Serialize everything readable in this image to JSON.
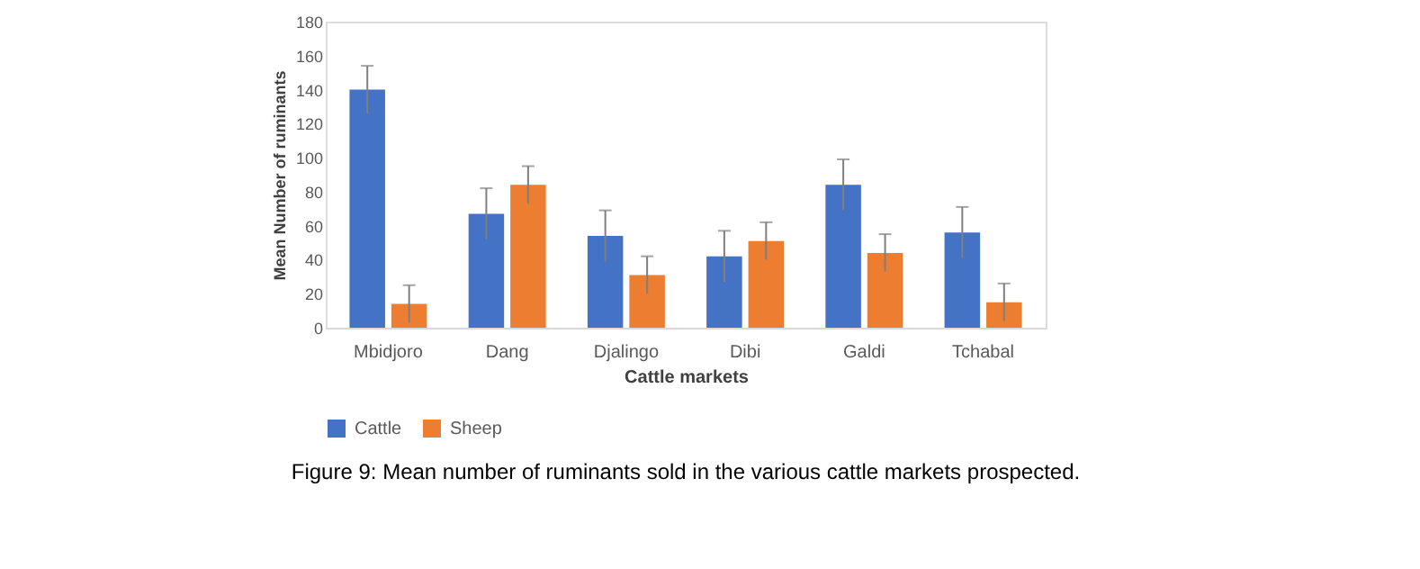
{
  "chart_data": {
    "type": "bar",
    "xlabel": "Cattle markets",
    "ylabel": "Mean Number of ruminants",
    "categories": [
      "Mbidjoro",
      "Dang",
      "Djalingo",
      "Dibi",
      "Galdi",
      "Tchabal"
    ],
    "series": [
      {
        "name": "Cattle",
        "color": "#4472c4",
        "values": [
          140,
          67,
          54,
          42,
          84,
          56
        ],
        "errors": [
          14,
          15,
          15,
          15,
          15,
          15
        ]
      },
      {
        "name": "Sheep",
        "color": "#ed7d31",
        "values": [
          14,
          84,
          31,
          51,
          44,
          15
        ],
        "errors": [
          11,
          11,
          11,
          11,
          11,
          11
        ]
      }
    ],
    "ylim": [
      0,
      180
    ],
    "yticks": [
      0,
      20,
      40,
      60,
      80,
      100,
      120,
      140,
      160,
      180
    ],
    "grid": false,
    "legend": "bottom",
    "annotations": [
      "Figure 9: Mean number of ruminants sold in the various cattle markets prospected."
    ]
  }
}
